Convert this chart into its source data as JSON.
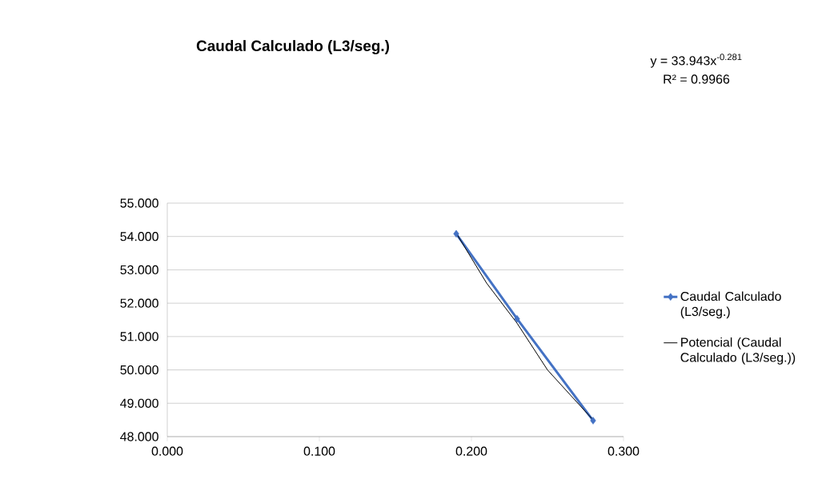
{
  "chart_data": {
    "type": "line",
    "title": "Caudal Calculado (L3/seg.)",
    "series": [
      {
        "name": "Caudal Calculado (L3/seg.)",
        "color": "#4472c4",
        "marker": "diamond",
        "x": [
          0.19,
          0.23,
          0.28
        ],
        "values": [
          54.08,
          51.53,
          48.48
        ]
      },
      {
        "name": "Potencial (Caudal Calculado (L3/seg.))",
        "color": "#000000",
        "marker": "none",
        "x": [
          0.19,
          0.21,
          0.23,
          0.25,
          0.28
        ],
        "values": [
          54.1,
          52.6,
          51.4,
          50.0,
          48.5
        ]
      }
    ],
    "xlim": [
      0,
      0.3
    ],
    "ylim": [
      48,
      55
    ],
    "xticks": [
      {
        "value": 0,
        "label": "0.000"
      },
      {
        "value": 0.1,
        "label": "0.100"
      },
      {
        "value": 0.2,
        "label": "0.200"
      },
      {
        "value": 0.3,
        "label": "0.300"
      }
    ],
    "yticks": [
      {
        "value": 48,
        "label": "48.000"
      },
      {
        "value": 49,
        "label": "49.000"
      },
      {
        "value": 50,
        "label": "50.000"
      },
      {
        "value": 51,
        "label": "51.000"
      },
      {
        "value": 52,
        "label": "52.000"
      },
      {
        "value": 53,
        "label": "53.000"
      },
      {
        "value": 54,
        "label": "54.000"
      },
      {
        "value": 55,
        "label": "55.000"
      }
    ],
    "annotations": [
      "y = 33.943x$^{-0.281}$",
      "R² = 0.9966"
    ],
    "grid": "y",
    "legend": "right",
    "line_style": "solid"
  }
}
